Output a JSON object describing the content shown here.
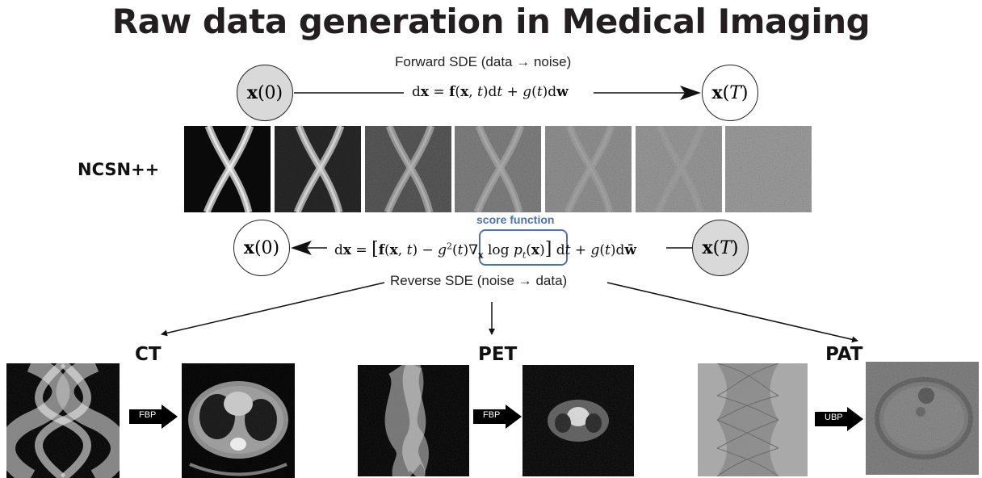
{
  "title": "Raw data generation in Medical Imaging",
  "forward": {
    "label": "Forward SDE (data → noise)",
    "start_node": "x(0)",
    "end_node": "x(T)"
  },
  "reverse": {
    "label": "Reverse SDE (noise → data)",
    "start_node": "x(T)",
    "end_node": "x(0)",
    "score_label": "score function"
  },
  "model": {
    "label": "NCSN++"
  },
  "modalities": [
    {
      "name": "CT",
      "recon_method": "FBP"
    },
    {
      "name": "PET",
      "recon_method": "FBP"
    },
    {
      "name": "PAT",
      "recon_method": "UBP"
    }
  ]
}
